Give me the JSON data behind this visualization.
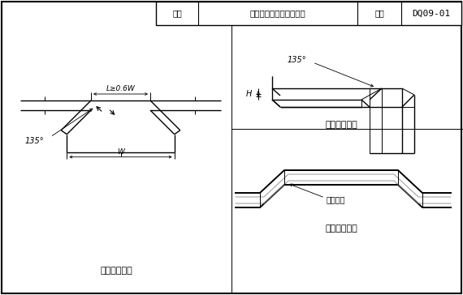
{
  "title_box": {
    "label1": "图名",
    "label2": "电缆桥架变向处连接做法",
    "label3": "图号",
    "label4": "DQ09-01"
  },
  "caption_tl": "槽架水平三通",
  "caption_tr": "槽架垂直弯头",
  "caption_br": "槽架水平翻弯",
  "angle_135": "135°",
  "dim_l": "L≥0.6W",
  "dim_w": "W",
  "dim_h": "H",
  "dim_angle": "翻弯角度",
  "line_color": "#000000"
}
